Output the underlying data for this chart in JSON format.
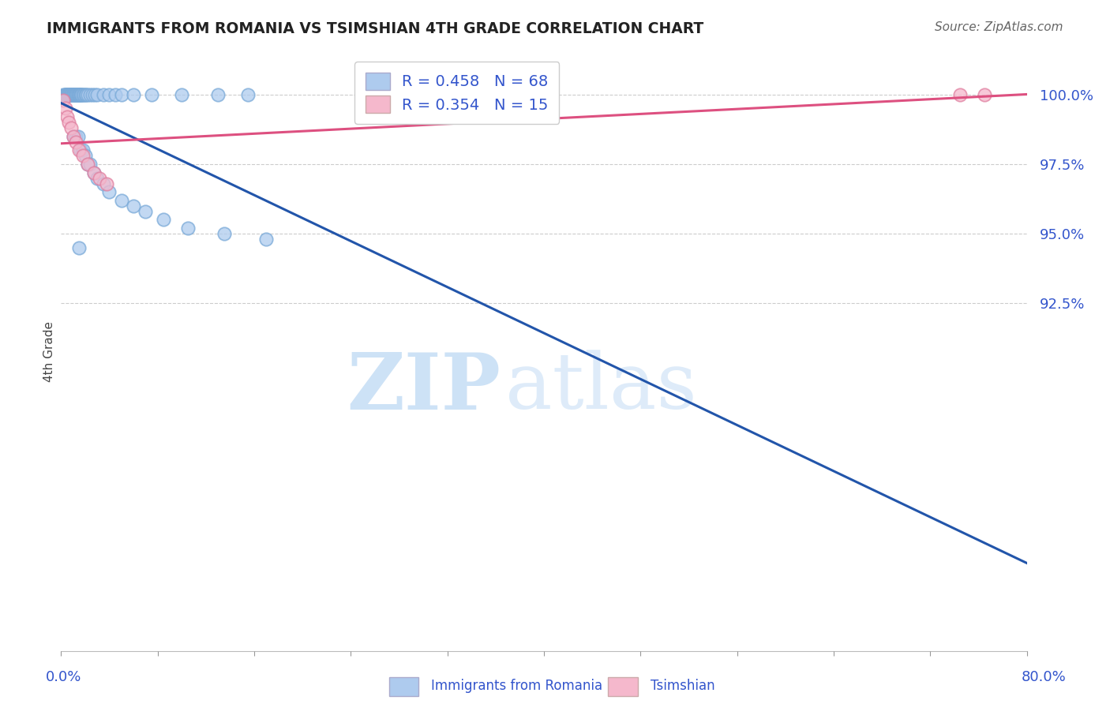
{
  "title": "IMMIGRANTS FROM ROMANIA VS TSIMSHIAN 4TH GRADE CORRELATION CHART",
  "source": "Source: ZipAtlas.com",
  "ylabel": "4th Grade",
  "yticks": [
    92.5,
    95.0,
    97.5,
    100.0
  ],
  "ytick_labels": [
    "92.5%",
    "95.0%",
    "97.5%",
    "100.0%"
  ],
  "xlim": [
    0.0,
    80.0
  ],
  "ylim": [
    80.0,
    101.5
  ],
  "romania_R": 0.458,
  "romania_N": 68,
  "tsimshian_R": 0.354,
  "tsimshian_N": 15,
  "romania_color": "#aecbee",
  "romania_edge_color": "#7aaad8",
  "romania_line_color": "#2255aa",
  "tsimshian_color": "#f5b8cc",
  "tsimshian_edge_color": "#e080a0",
  "tsimshian_line_color": "#dd5080",
  "text_color": "#3355cc",
  "title_color": "#222222",
  "source_color": "#666666",
  "legend_border": "#cccccc",
  "grid_color": "#cccccc",
  "romania_x": [
    0.2,
    0.3,
    0.35,
    0.4,
    0.45,
    0.5,
    0.55,
    0.6,
    0.65,
    0.7,
    0.75,
    0.8,
    0.85,
    0.9,
    0.95,
    1.0,
    1.05,
    1.1,
    1.15,
    1.2,
    1.25,
    1.3,
    1.35,
    1.4,
    1.45,
    1.5,
    1.55,
    1.6,
    1.65,
    1.7,
    1.8,
    1.9,
    2.0,
    2.1,
    2.2,
    2.4,
    2.6,
    2.8,
    3.0,
    3.5,
    4.0,
    4.5,
    5.0,
    6.0,
    7.5,
    10.0,
    13.0,
    15.5,
    1.0,
    1.2,
    1.4,
    1.6,
    1.8,
    2.0,
    2.2,
    2.4,
    2.7,
    3.0,
    3.5,
    4.0,
    5.0,
    6.0,
    7.0,
    8.5,
    10.5,
    13.5,
    17.0,
    1.5
  ],
  "romania_y": [
    100.0,
    100.0,
    100.0,
    100.0,
    100.0,
    100.0,
    100.0,
    100.0,
    100.0,
    100.0,
    100.0,
    100.0,
    100.0,
    100.0,
    100.0,
    100.0,
    100.0,
    100.0,
    100.0,
    100.0,
    100.0,
    100.0,
    100.0,
    100.0,
    100.0,
    100.0,
    100.0,
    100.0,
    100.0,
    100.0,
    100.0,
    100.0,
    100.0,
    100.0,
    100.0,
    100.0,
    100.0,
    100.0,
    100.0,
    100.0,
    100.0,
    100.0,
    100.0,
    100.0,
    100.0,
    100.0,
    100.0,
    100.0,
    98.5,
    98.5,
    98.5,
    98.0,
    98.0,
    97.8,
    97.5,
    97.5,
    97.2,
    97.0,
    96.8,
    96.5,
    96.2,
    96.0,
    95.8,
    95.5,
    95.2,
    95.0,
    94.8,
    94.5
  ],
  "tsimshian_x": [
    0.2,
    0.35,
    0.5,
    0.65,
    0.8,
    1.0,
    1.2,
    1.5,
    1.8,
    2.2,
    2.7,
    3.2,
    3.8,
    74.5,
    76.5
  ],
  "tsimshian_y": [
    99.8,
    99.5,
    99.2,
    99.0,
    98.8,
    98.5,
    98.3,
    98.0,
    97.8,
    97.5,
    97.2,
    97.0,
    96.8,
    100.0,
    100.0
  ]
}
